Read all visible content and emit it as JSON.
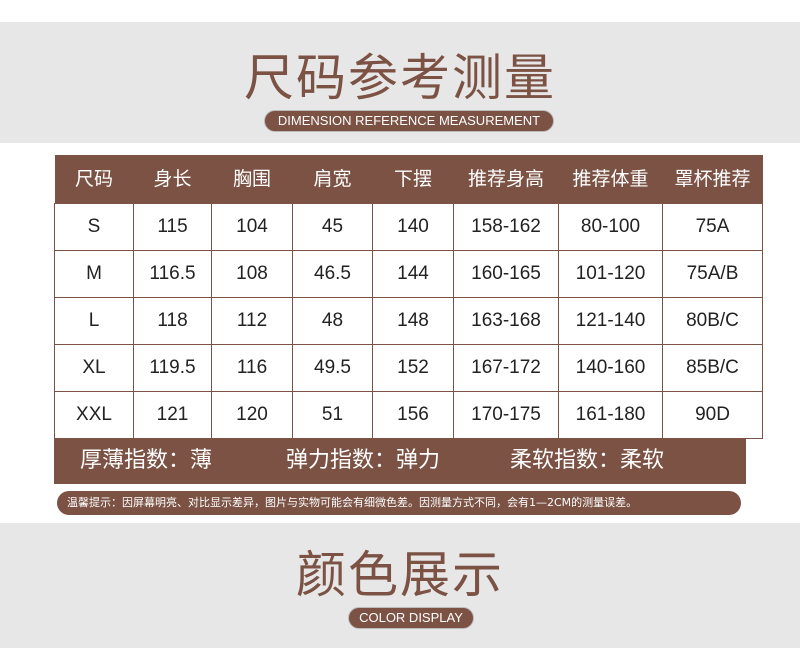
{
  "header": {
    "title": "尺码参考测量",
    "subtitle": "DIMENSION REFERENCE MEASUREMENT"
  },
  "table": {
    "headers": [
      "尺码",
      "身长",
      "胸围",
      "肩宽",
      "下摆",
      "推荐身高",
      "推荐体重",
      "罩杯推荐"
    ],
    "rows": [
      [
        "S",
        "115",
        "104",
        "45",
        "140",
        "158-162",
        "80-100",
        "75A"
      ],
      [
        "M",
        "116.5",
        "108",
        "46.5",
        "144",
        "160-165",
        "101-120",
        "75A/B"
      ],
      [
        "L",
        "118",
        "112",
        "48",
        "148",
        "163-168",
        "121-140",
        "80B/C"
      ],
      [
        "XL",
        "119.5",
        "116",
        "49.5",
        "152",
        "167-172",
        "140-160",
        "85B/C"
      ],
      [
        "XXL",
        "121",
        "120",
        "51",
        "156",
        "170-175",
        "161-180",
        "90D"
      ]
    ]
  },
  "indices": [
    "厚薄指数：薄",
    "弹力指数：弹力",
    "柔软指数：柔软"
  ],
  "note": "温馨提示：因屏幕明亮、对比显示差异，图片与实物可能会有细微色差。因测量方式不同，会有1—2CM的测量误差。",
  "color_section": {
    "title": "颜色展示",
    "subtitle": "COLOR DISPLAY"
  },
  "colors": {
    "brand": "#7b5244",
    "band": "#e7e7e7"
  }
}
